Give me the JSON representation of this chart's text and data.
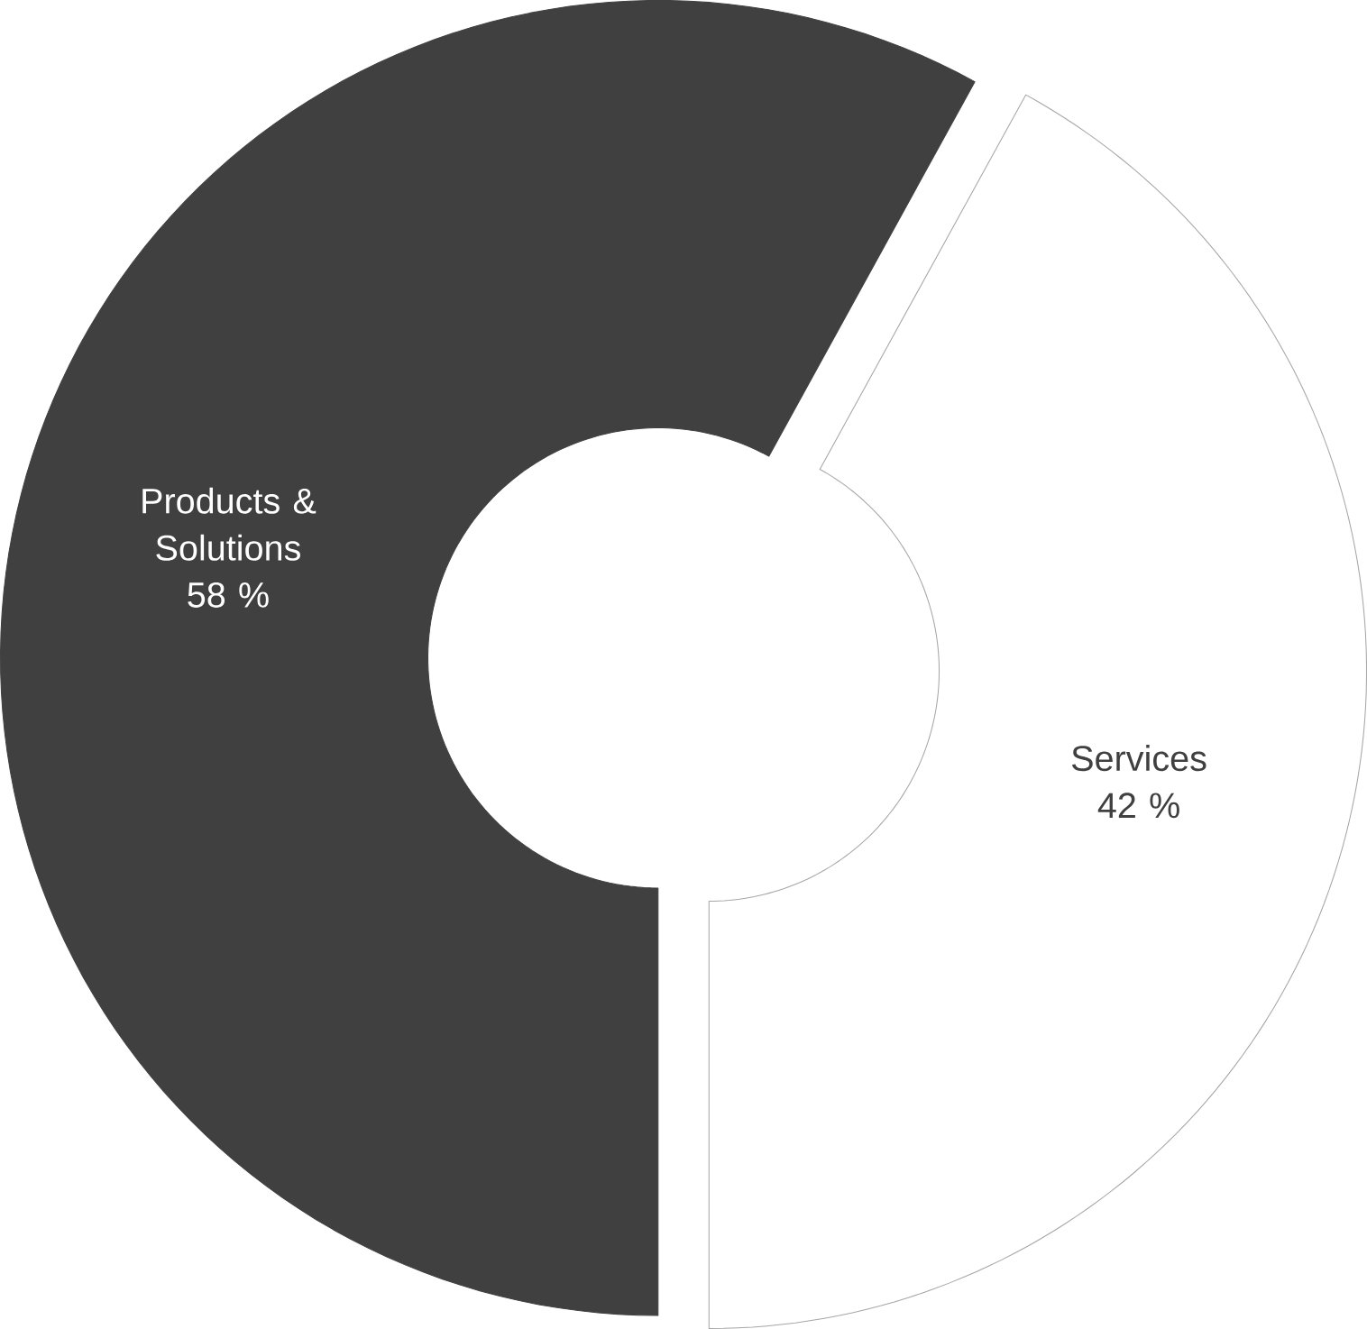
{
  "chart_data": {
    "type": "donut",
    "categories": [
      "Products & Solutions",
      "Services"
    ],
    "values": [
      58,
      42
    ],
    "colors": [
      "#404040",
      "#ffffff"
    ],
    "value_labels": [
      "58 %",
      "42 %"
    ]
  }
}
